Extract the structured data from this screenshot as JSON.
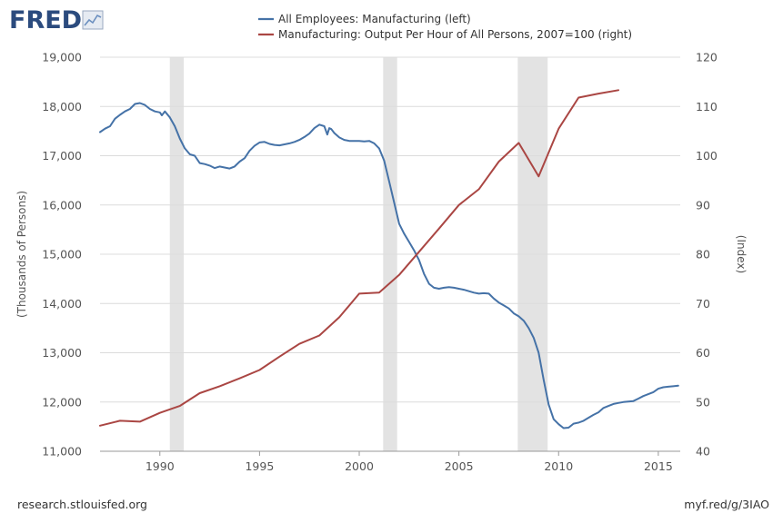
{
  "brand": {
    "logo_text": "FRED",
    "logo_icon": "line-chart-icon",
    "footer_left": "research.stlouisfed.org",
    "footer_right": "myf.red/g/3IAO"
  },
  "colors": {
    "series1": "#4572a7",
    "series2": "#aa4643",
    "recession": "#e3e3e3",
    "grid": "#dcdcdc",
    "text": "#555555"
  },
  "chart_data": {
    "type": "line",
    "title": "",
    "xlabel": "",
    "ylabel_left": "(Thousands of Persons)",
    "ylabel_right": "(Index)",
    "x_range": [
      1987,
      2016.1
    ],
    "ylim_left": [
      11000,
      19000
    ],
    "ylim_right": [
      40,
      120
    ],
    "x_ticks": [
      "1990",
      "1995",
      "2000",
      "2005",
      "2010",
      "2015"
    ],
    "y_ticks_left": [
      "11,000",
      "12,000",
      "13,000",
      "14,000",
      "15,000",
      "16,000",
      "17,000",
      "18,000",
      "19,000"
    ],
    "y_ticks_right": [
      "40",
      "50",
      "60",
      "70",
      "80",
      "90",
      "100",
      "110",
      "120"
    ],
    "grid": "horizontal",
    "legend_position": "top-center",
    "recessions": [
      [
        1990.5,
        1991.2
      ],
      [
        2001.2,
        2001.9
      ],
      [
        2007.95,
        2009.45
      ]
    ],
    "series": [
      {
        "name": "All Employees: Manufacturing (left)",
        "axis": "left",
        "x": [
          1987.0,
          1987.25,
          1987.5,
          1987.75,
          1988.0,
          1988.25,
          1988.5,
          1988.75,
          1989.0,
          1989.25,
          1989.5,
          1989.75,
          1990.0,
          1990.1,
          1990.25,
          1990.5,
          1990.75,
          1991.0,
          1991.25,
          1991.5,
          1991.75,
          1992.0,
          1992.25,
          1992.5,
          1992.75,
          1993.0,
          1993.25,
          1993.5,
          1993.75,
          1994.0,
          1994.25,
          1994.5,
          1994.75,
          1995.0,
          1995.25,
          1995.5,
          1995.75,
          1996.0,
          1996.25,
          1996.5,
          1996.75,
          1997.0,
          1997.25,
          1997.5,
          1997.75,
          1998.0,
          1998.25,
          1998.4,
          1998.5,
          1998.6,
          1998.75,
          1999.0,
          1999.25,
          1999.5,
          1999.75,
          2000.0,
          2000.25,
          2000.5,
          2000.75,
          2001.0,
          2001.25,
          2001.5,
          2001.75,
          2002.0,
          2002.25,
          2002.5,
          2002.75,
          2003.0,
          2003.25,
          2003.5,
          2003.75,
          2004.0,
          2004.25,
          2004.5,
          2004.75,
          2005.0,
          2005.25,
          2005.5,
          2005.75,
          2006.0,
          2006.25,
          2006.5,
          2006.75,
          2007.0,
          2007.25,
          2007.5,
          2007.75,
          2008.0,
          2008.25,
          2008.5,
          2008.75,
          2009.0,
          2009.25,
          2009.5,
          2009.75,
          2010.0,
          2010.25,
          2010.5,
          2010.75,
          2011.0,
          2011.25,
          2011.5,
          2011.75,
          2012.0,
          2012.25,
          2012.5,
          2012.75,
          2013.0,
          2013.25,
          2013.5,
          2013.75,
          2014.0,
          2014.25,
          2014.5,
          2014.75,
          2015.0,
          2015.25,
          2015.5,
          2015.75,
          2016.0
        ],
        "values": [
          17480,
          17550,
          17600,
          17750,
          17830,
          17900,
          17950,
          18050,
          18070,
          18030,
          17950,
          17900,
          17880,
          17820,
          17900,
          17780,
          17600,
          17350,
          17150,
          17030,
          17000,
          16850,
          16830,
          16800,
          16750,
          16780,
          16760,
          16740,
          16780,
          16880,
          16950,
          17100,
          17200,
          17270,
          17280,
          17240,
          17220,
          17210,
          17230,
          17250,
          17280,
          17320,
          17380,
          17450,
          17560,
          17630,
          17600,
          17430,
          17560,
          17540,
          17460,
          17370,
          17320,
          17300,
          17300,
          17300,
          17290,
          17300,
          17250,
          17150,
          16900,
          16480,
          16050,
          15620,
          15420,
          15250,
          15080,
          14880,
          14600,
          14400,
          14320,
          14300,
          14320,
          14330,
          14320,
          14300,
          14280,
          14250,
          14220,
          14200,
          14210,
          14200,
          14100,
          14020,
          13960,
          13900,
          13800,
          13740,
          13650,
          13500,
          13300,
          13000,
          12450,
          11950,
          11650,
          11550,
          11470,
          11480,
          11560,
          11580,
          11620,
          11680,
          11740,
          11790,
          11880,
          11920,
          11960,
          11980,
          12000,
          12010,
          12020,
          12070,
          12120,
          12160,
          12200,
          12270,
          12300,
          12310,
          12320,
          12330
        ]
      },
      {
        "name": "Manufacturing: Output Per Hour of All Persons, 2007=100 (right)",
        "axis": "right",
        "x": [
          1987,
          1988,
          1989,
          1990,
          1991,
          1992,
          1993,
          1994,
          1995,
          1996,
          1997,
          1998,
          1999,
          2000,
          2001,
          2002,
          2003,
          2004,
          2005,
          2006,
          2007,
          2008,
          2009,
          2010,
          2011,
          2012,
          2013
        ],
        "values": [
          45.2,
          46.2,
          46.0,
          47.8,
          49.2,
          51.8,
          53.2,
          54.8,
          56.5,
          59.2,
          61.8,
          63.5,
          67.2,
          72.0,
          72.2,
          75.8,
          80.5,
          85.2,
          90.0,
          93.2,
          98.8,
          102.6,
          95.8,
          105.5,
          111.8,
          112.6,
          113.3
        ]
      }
    ]
  }
}
